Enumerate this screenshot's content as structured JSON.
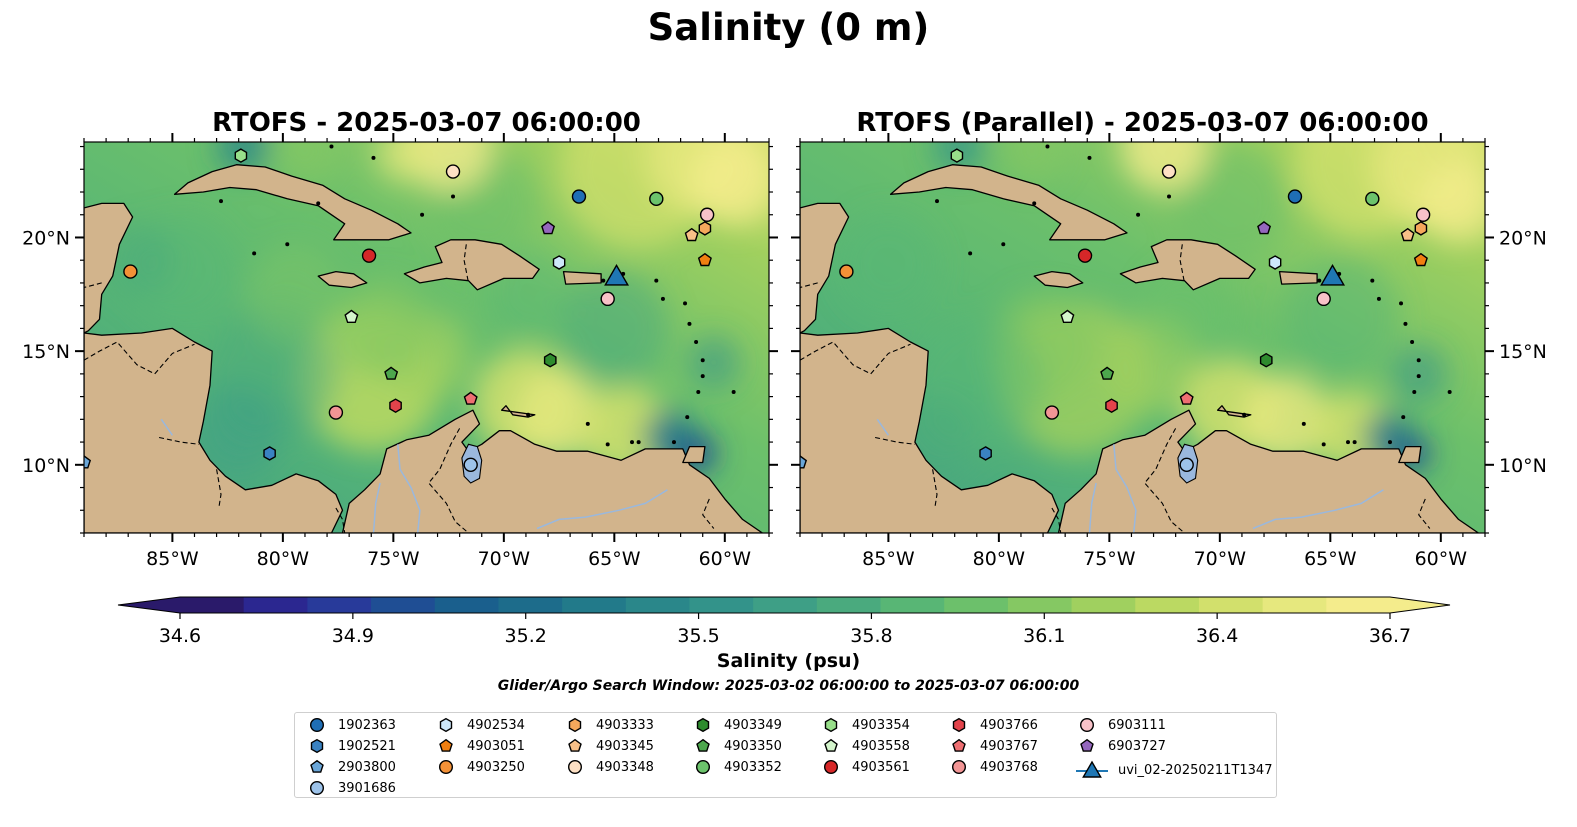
{
  "figure": {
    "title": "Salinity (0 m)",
    "panels": [
      {
        "title": "RTOFS - 2025-03-07 06:00:00",
        "variant": "a"
      },
      {
        "title": "RTOFS (Parallel) - 2025-03-07 06:00:00",
        "variant": "b"
      }
    ],
    "lon_labels": [
      "85°W",
      "80°W",
      "75°W",
      "70°W",
      "65°W",
      "60°W"
    ],
    "lat_labels": [
      "10°N",
      "15°N",
      "20°N"
    ],
    "lon_range": [
      -89,
      -58
    ],
    "lat_range": [
      7,
      24.2
    ],
    "colorbar": {
      "label": "Salinity (psu)",
      "ticks": [
        "34.6",
        "34.9",
        "35.2",
        "35.5",
        "35.8",
        "36.1",
        "36.4",
        "36.7"
      ],
      "range": [
        34.6,
        36.7
      ],
      "colors": [
        "#2a1a6a",
        "#2b2790",
        "#283a9a",
        "#1f4e94",
        "#1a5f8d",
        "#1d6c8b",
        "#227a8a",
        "#2a878a",
        "#33938a",
        "#3e9f86",
        "#4aaa7e",
        "#58b675",
        "#6cc06b",
        "#85c863",
        "#a0d05f",
        "#bbd962",
        "#d2e06c",
        "#e6e87e",
        "#f4ec8c"
      ]
    },
    "search_window": "Glider/Argo Search Window: 2025-03-02 06:00:00 to 2025-03-07 06:00:00",
    "land_color": "#d2b48c",
    "lake_color": "#9ab8dd",
    "pacific_color": "#2a1a6a"
  },
  "legend": [
    {
      "label": "1902363",
      "marker": "circle",
      "color": "#1f6eb5"
    },
    {
      "label": "1902521",
      "marker": "hexagon",
      "color": "#3a82c2"
    },
    {
      "label": "2903800",
      "marker": "pentagon",
      "color": "#6aa6d8"
    },
    {
      "label": "3901686",
      "marker": "circle",
      "color": "#9dc3ea"
    },
    {
      "label": "4902534",
      "marker": "hexagon",
      "color": "#cde7fa"
    },
    {
      "label": "4903051",
      "marker": "pentagon",
      "color": "#f07f11"
    },
    {
      "label": "4903250",
      "marker": "circle",
      "color": "#f39137"
    },
    {
      "label": "4903333",
      "marker": "hexagon",
      "color": "#f5a85c"
    },
    {
      "label": "4903345",
      "marker": "pentagon",
      "color": "#f8c088"
    },
    {
      "label": "4903348",
      "marker": "circle",
      "color": "#fde0c4"
    },
    {
      "label": "4903349",
      "marker": "hexagon",
      "color": "#2e8b2e"
    },
    {
      "label": "4903350",
      "marker": "pentagon",
      "color": "#4da64d"
    },
    {
      "label": "4903352",
      "marker": "circle",
      "color": "#6cc36c"
    },
    {
      "label": "4903354",
      "marker": "hexagon",
      "color": "#98df8a"
    },
    {
      "label": "4903558",
      "marker": "pentagon",
      "color": "#d4f5cc"
    },
    {
      "label": "4903561",
      "marker": "circle",
      "color": "#d62728"
    },
    {
      "label": "4903766",
      "marker": "hexagon",
      "color": "#e3434b"
    },
    {
      "label": "4903767",
      "marker": "pentagon",
      "color": "#ee6f72"
    },
    {
      "label": "4903768",
      "marker": "circle",
      "color": "#f29595"
    },
    {
      "label": "6903111",
      "marker": "circle",
      "color": "#f8c2c8"
    },
    {
      "label": "6903727",
      "marker": "pentagon",
      "color": "#9467bd"
    },
    {
      "label": "uvi_02-20250211T1347",
      "marker": "triangle",
      "color": "#1f77b4"
    }
  ],
  "floats": [
    {
      "id": "1902363",
      "lon": -66.6,
      "lat": 21.8
    },
    {
      "id": "1902521",
      "lon": -80.6,
      "lat": 10.5
    },
    {
      "id": "2903800",
      "lon": -89.0,
      "lat": 10.1
    },
    {
      "id": "3901686",
      "lon": -71.5,
      "lat": 10.0
    },
    {
      "id": "4902534",
      "lon": -67.5,
      "lat": 18.9
    },
    {
      "id": "4903051",
      "lon": -60.9,
      "lat": 19.0
    },
    {
      "id": "4903250",
      "lon": -86.9,
      "lat": 18.5
    },
    {
      "id": "4903333",
      "lon": -60.9,
      "lat": 20.4
    },
    {
      "id": "4903345",
      "lon": -61.5,
      "lat": 20.1
    },
    {
      "id": "4903348",
      "lon": -72.3,
      "lat": 22.9
    },
    {
      "id": "4903349",
      "lon": -67.9,
      "lat": 14.6
    },
    {
      "id": "4903350",
      "lon": -75.1,
      "lat": 14.0
    },
    {
      "id": "4903352",
      "lon": -63.1,
      "lat": 21.7
    },
    {
      "id": "4903354",
      "lon": -81.9,
      "lat": 23.6
    },
    {
      "id": "4903558",
      "lon": -76.9,
      "lat": 16.5
    },
    {
      "id": "4903561",
      "lon": -76.1,
      "lat": 19.2
    },
    {
      "id": "4903766",
      "lon": -74.9,
      "lat": 12.6
    },
    {
      "id": "4903767",
      "lon": -71.5,
      "lat": 12.9
    },
    {
      "id": "4903768",
      "lon": -77.6,
      "lat": 12.3
    },
    {
      "id": "6903111",
      "lon": -60.8,
      "lat": 21.0
    },
    {
      "id": "6903727",
      "lon": -68.0,
      "lat": 20.4
    },
    {
      "id": "6903111b",
      "lon": -65.3,
      "lat": 17.3
    },
    {
      "id": "uvi_02-20250211T1347",
      "lon": -64.9,
      "lat": 18.2
    }
  ]
}
